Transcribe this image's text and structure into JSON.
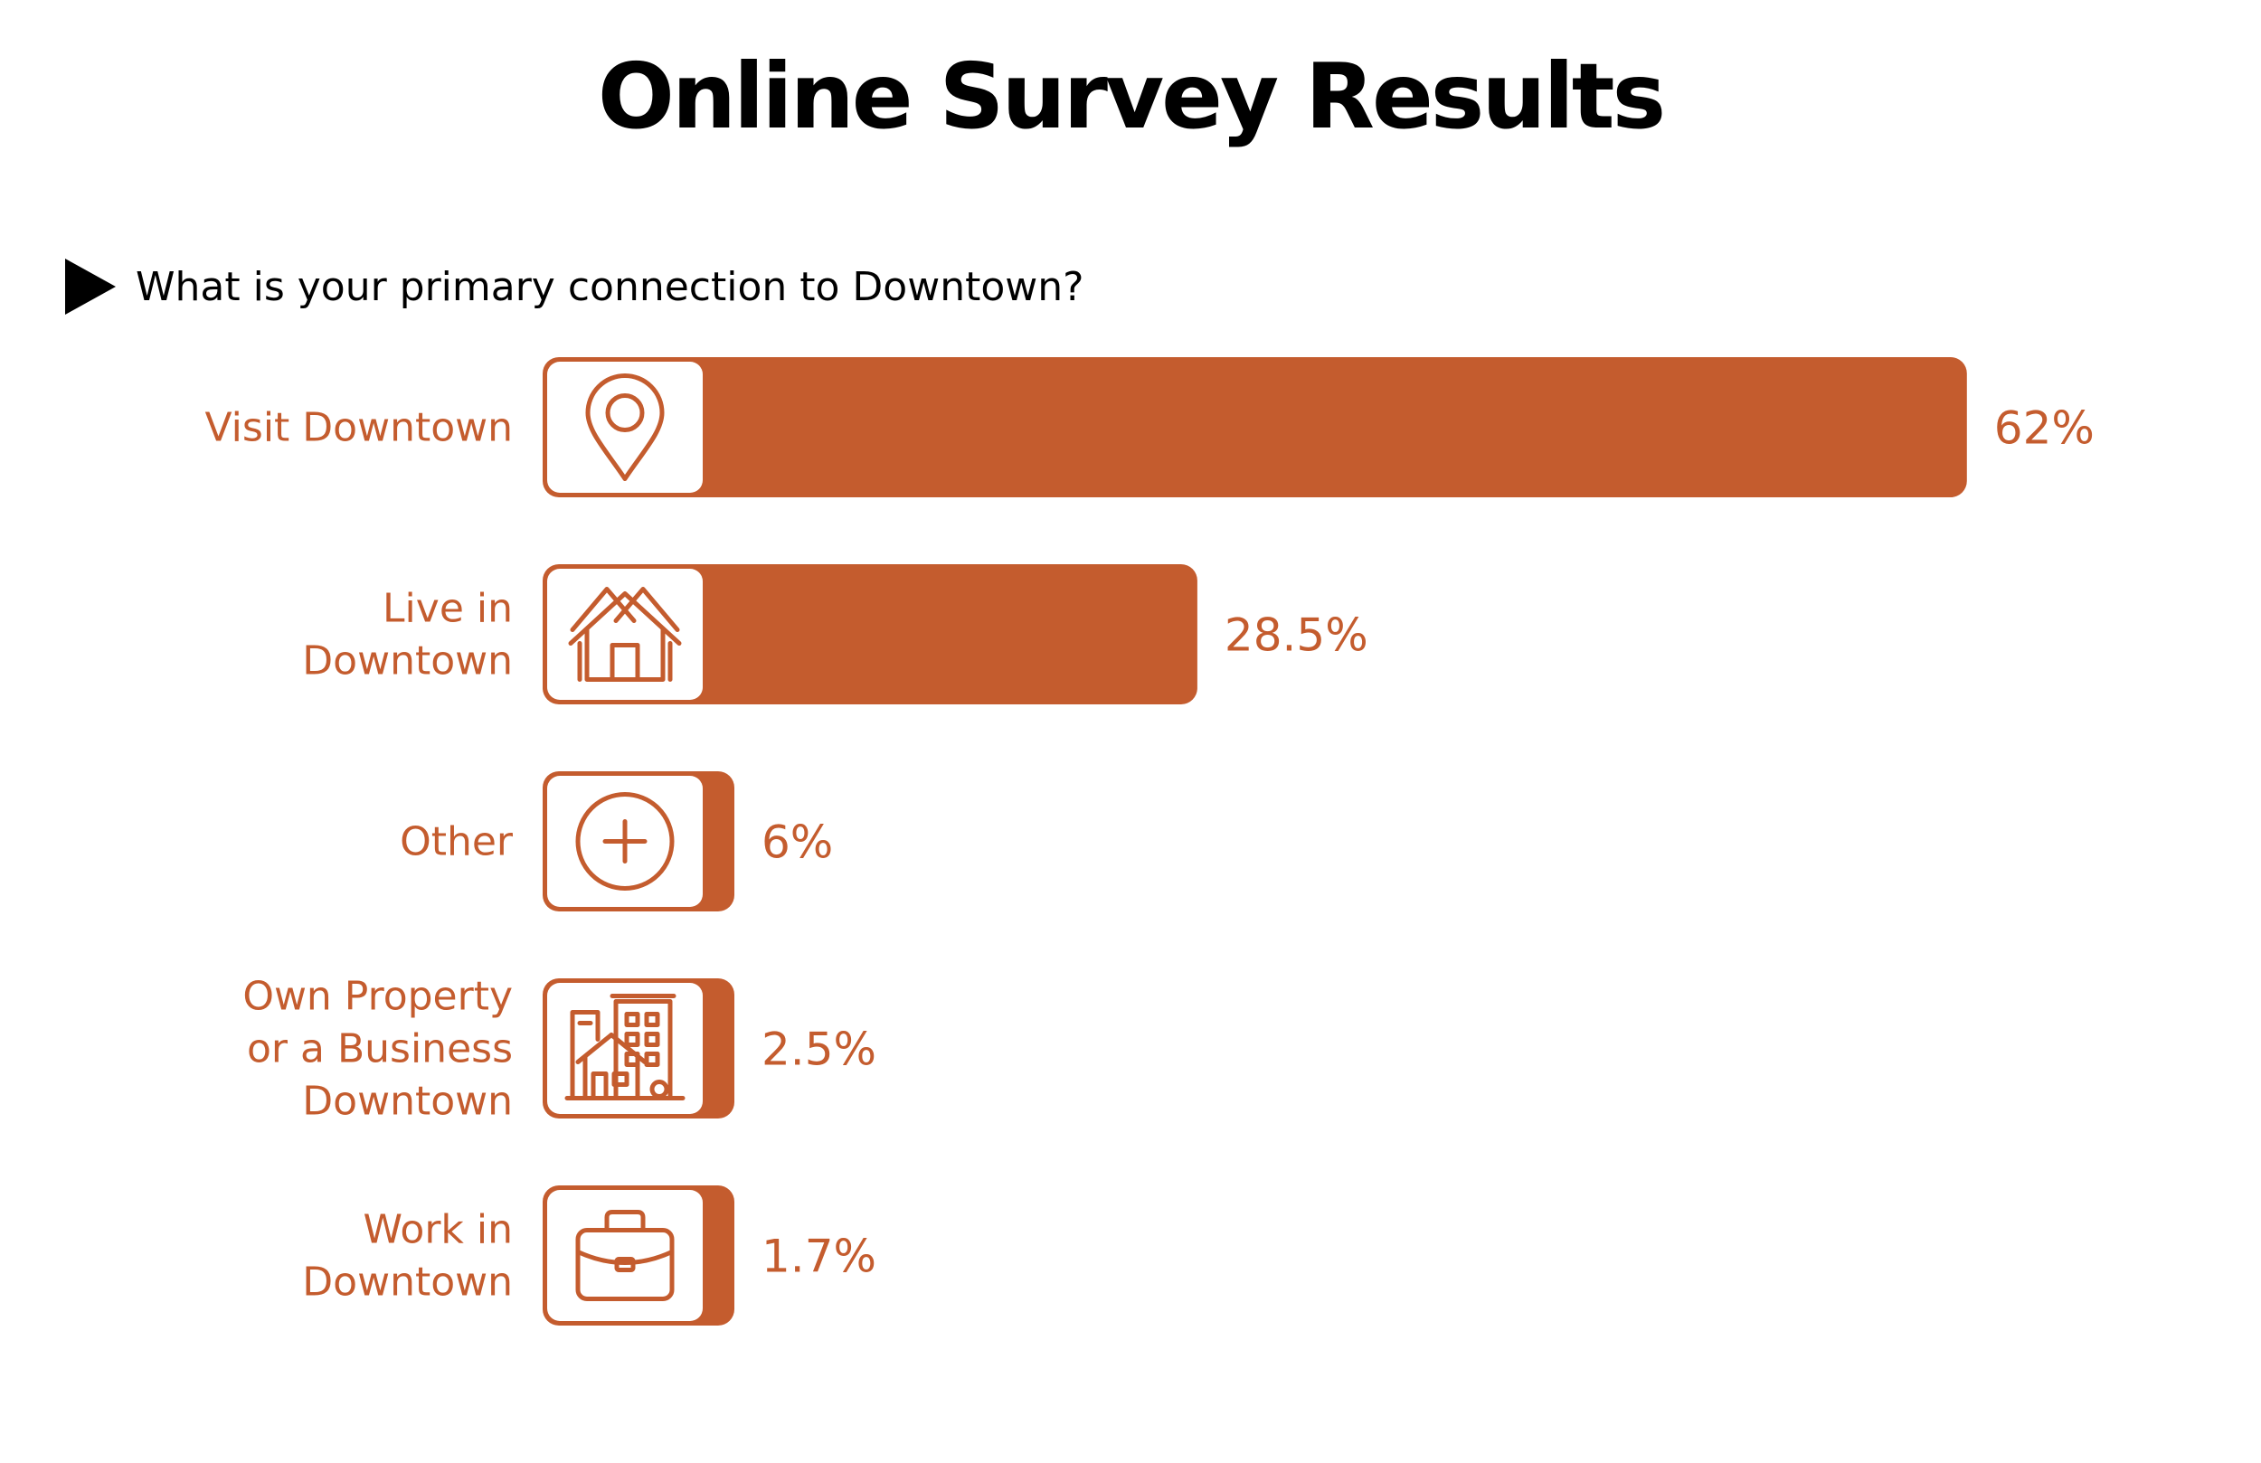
{
  "title": "Online Survey Results",
  "question": "What is your primary connection to Downtown?",
  "colors": {
    "accent": "#c45c2e",
    "text": "#000000",
    "background": "#ffffff"
  },
  "chart_data": {
    "type": "bar",
    "orientation": "horizontal",
    "title": "Online Survey Results",
    "subtitle": "What is your primary connection to Downtown?",
    "categories": [
      [
        "Visit Downtown"
      ],
      [
        "Live in",
        "Downtown"
      ],
      [
        "Other"
      ],
      [
        "Own Property",
        "or a Business",
        "Downtown"
      ],
      [
        "Work in",
        "Downtown"
      ]
    ],
    "values": [
      62,
      28.5,
      6,
      2.5,
      1.7
    ],
    "value_labels": [
      "62%",
      "28.5%",
      "6%",
      "2.5%",
      "1.7%"
    ],
    "icons": [
      "map-pin-icon",
      "house-icon",
      "plus-circle-icon",
      "buildings-icon",
      "briefcase-icon"
    ],
    "unit": "%",
    "grid": false,
    "legend": "none"
  }
}
